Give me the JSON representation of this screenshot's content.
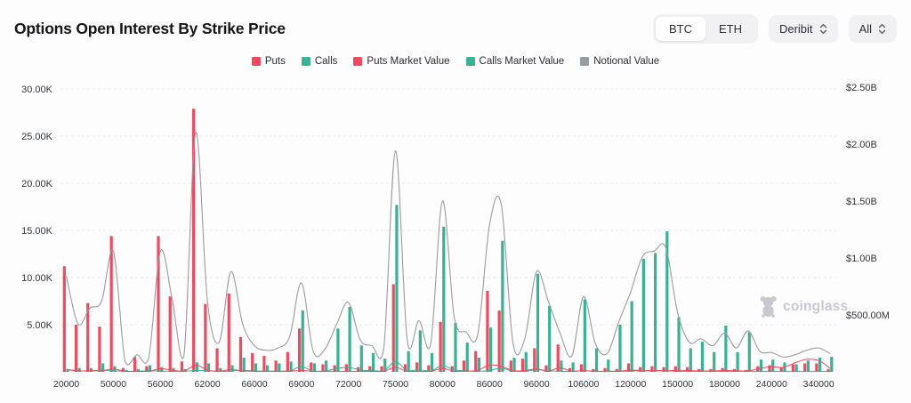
{
  "header": {
    "title": "Options Open Interest By Strike Price",
    "asset_toggle": {
      "options": [
        "BTC",
        "ETH"
      ],
      "selected": "BTC"
    },
    "exchange_select": {
      "value": "Deribit"
    },
    "scope_select": {
      "value": "All"
    }
  },
  "legend": {
    "items": [
      {
        "label": "Puts",
        "color": "#f5475d"
      },
      {
        "label": "Calls",
        "color": "#35b392"
      },
      {
        "label": "Puts Market Value",
        "color": "#f5475d"
      },
      {
        "label": "Calls Market Value",
        "color": "#35b392"
      },
      {
        "label": "Notional Value",
        "color": "#989ca3"
      }
    ]
  },
  "watermark": {
    "text": "coinglass"
  },
  "chart_data": {
    "type": "bar",
    "subtype": "bars-with-overlaid-lines",
    "x_axis": {
      "labels": [
        "20000",
        "50000",
        "56000",
        "62000",
        "66000",
        "69000",
        "72000",
        "75000",
        "80000",
        "86000",
        "96000",
        "106000",
        "120000",
        "150000",
        "180000",
        "240000",
        "340000"
      ],
      "label_every_n_categories": 4,
      "num_categories": 66
    },
    "y_axis_left": {
      "ticks": [
        "30.00K",
        "25.00K",
        "20.00K",
        "15.00K",
        "10.00K",
        "5.00K"
      ],
      "tick_values_k": [
        30,
        25,
        20,
        15,
        10,
        5
      ],
      "range_k": [
        0,
        30.5
      ],
      "grid": "dashed"
    },
    "y_axis_right": {
      "ticks": [
        "$2.50B",
        "$2.00B",
        "$1.50B",
        "$1.00B",
        "$500.00M"
      ],
      "tick_values_m": [
        2500,
        2000,
        1500,
        1000,
        500
      ],
      "range_m": [
        0,
        2580
      ]
    },
    "series": [
      {
        "name": "Puts",
        "type": "bar",
        "axis": "left",
        "unit": "K contracts",
        "color": "#f5475d",
        "values": [
          11.2,
          5,
          7.3,
          4.8,
          14.4,
          0.4,
          1.6,
          0.6,
          14.4,
          8,
          1.1,
          27.9,
          7.2,
          2.5,
          8.3,
          3.7,
          2,
          1.7,
          1.2,
          2.1,
          4.6,
          1,
          0.8,
          0.7,
          0.8,
          0.5,
          0.6,
          0.6,
          9.3,
          0.8,
          1,
          0.7,
          5.3,
          0.6,
          1.2,
          2.2,
          8.6,
          6.5,
          1.2,
          1.4,
          2.5,
          0.7,
          2.9,
          0.4,
          0.8,
          0.3,
          0.4,
          0.3,
          0.9,
          0.5,
          0.6,
          0.5,
          0.6,
          0.5,
          0.3,
          0.3,
          0.4,
          0.3,
          0.2,
          0.6,
          0.7,
          0.5,
          0.8,
          0.9,
          0.9,
          0.3
        ]
      },
      {
        "name": "Calls",
        "type": "bar",
        "axis": "left",
        "unit": "K contracts",
        "color": "#35b392",
        "values": [
          0.3,
          0.4,
          0.4,
          0.9,
          0.6,
          0.2,
          0.3,
          0.7,
          0.5,
          0.4,
          0.3,
          1,
          0.9,
          0.4,
          0.7,
          1.5,
          0.9,
          0.7,
          0.9,
          1.1,
          6.5,
          0.9,
          1.2,
          4.6,
          6.9,
          2.8,
          2,
          1.4,
          17.7,
          2.2,
          4.4,
          2,
          15.4,
          5.2,
          3.1,
          1.5,
          4.7,
          13.9,
          1.5,
          2.1,
          10.4,
          7,
          1.2,
          1,
          7.7,
          2.5,
          1.3,
          5,
          7.5,
          12,
          12.6,
          14.9,
          5.8,
          2.5,
          3.2,
          2.1,
          4.9,
          2.1,
          4.2,
          1.3,
          1.3,
          1,
          0.8,
          1.2,
          1.5,
          1.6
        ]
      },
      {
        "name": "Puts Market Value",
        "type": "line",
        "axis": "right",
        "unit": "$M",
        "color": "#f5475d",
        "values": [
          20,
          8,
          10,
          8,
          25,
          2,
          3,
          2,
          28,
          15,
          3,
          60,
          15,
          6,
          20,
          9,
          5,
          4,
          3,
          6,
          12,
          3,
          3,
          2,
          3,
          2,
          2,
          2,
          40,
          3,
          4,
          3,
          30,
          3,
          7,
          14,
          60,
          50,
          10,
          12,
          25,
          7,
          35,
          5,
          11,
          4,
          6,
          5,
          16,
          9,
          12,
          10,
          14,
          12,
          8,
          8,
          12,
          10,
          8,
          30,
          45,
          40,
          80,
          110,
          100,
          30
        ]
      },
      {
        "name": "Calls Market Value",
        "type": "line",
        "axis": "right",
        "unit": "$M",
        "color": "#35b392",
        "values": [
          22,
          10,
          8,
          15,
          10,
          3,
          5,
          10,
          7,
          5,
          4,
          12,
          10,
          4,
          7,
          14,
          8,
          6,
          7,
          8,
          45,
          6,
          8,
          28,
          40,
          16,
          11,
          7,
          90,
          10,
          19,
          8,
          55,
          17,
          10,
          4,
          12,
          32,
          3,
          4,
          18,
          11,
          2,
          1,
          10,
          3,
          1,
          5,
          7,
          10,
          10,
          11,
          4,
          2,
          2,
          1,
          3,
          1,
          2,
          1,
          1,
          1,
          1,
          1,
          1,
          1
        ]
      },
      {
        "name": "Notional Value",
        "type": "line",
        "axis": "right",
        "unit": "$M",
        "color": "#9b9b9f",
        "values": [
          840,
          420,
          560,
          620,
          1060,
          90,
          150,
          120,
          1060,
          640,
          140,
          2100,
          620,
          260,
          880,
          420,
          230,
          190,
          210,
          310,
          780,
          180,
          200,
          420,
          610,
          280,
          230,
          200,
          1940,
          280,
          450,
          250,
          1500,
          480,
          350,
          330,
          1290,
          1470,
          250,
          290,
          880,
          620,
          340,
          140,
          660,
          250,
          160,
          440,
          700,
          1010,
          1060,
          1090,
          520,
          260,
          290,
          230,
          340,
          210,
          360,
          180,
          170,
          130,
          150,
          190,
          210,
          160
        ]
      }
    ]
  }
}
